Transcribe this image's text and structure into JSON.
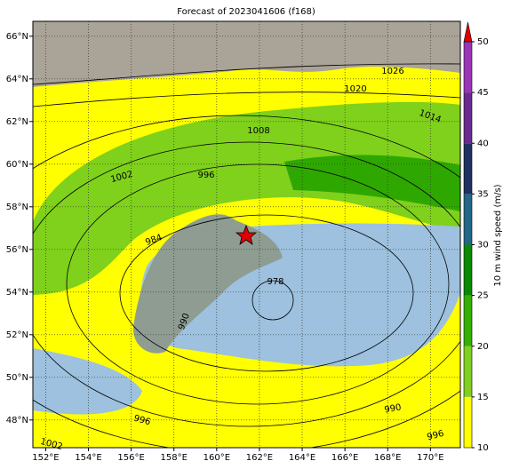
{
  "title": "Forecast of 2023041606 (f168)",
  "map": {
    "xlim": [
      151.4,
      171.4
    ],
    "ylim": [
      46.7,
      66.7
    ],
    "xticks": [
      {
        "value": 152,
        "label": "152°E"
      },
      {
        "value": 154,
        "label": "154°E"
      },
      {
        "value": 156,
        "label": "156°E"
      },
      {
        "value": 158,
        "label": "158°E"
      },
      {
        "value": 160,
        "label": "160°E"
      },
      {
        "value": 162,
        "label": "162°E"
      },
      {
        "value": 164,
        "label": "164°E"
      },
      {
        "value": 166,
        "label": "166°E"
      },
      {
        "value": 168,
        "label": "168°E"
      },
      {
        "value": 170,
        "label": "170°E"
      }
    ],
    "yticks": [
      {
        "value": 48,
        "label": "48°N"
      },
      {
        "value": 50,
        "label": "50°N"
      },
      {
        "value": 52,
        "label": "52°N"
      },
      {
        "value": 54,
        "label": "54°N"
      },
      {
        "value": 56,
        "label": "56°N"
      },
      {
        "value": 58,
        "label": "58°N"
      },
      {
        "value": 60,
        "label": "60°N"
      },
      {
        "value": 62,
        "label": "62°N"
      },
      {
        "value": 64,
        "label": "64°N"
      },
      {
        "value": 66,
        "label": "66°N"
      }
    ],
    "grid": true,
    "isobar_labels": [
      1026,
      1020,
      1014,
      1008,
      1002,
      996,
      984,
      978,
      990,
      996,
      990,
      996,
      1002
    ]
  },
  "colorbar": {
    "label": "10 m wind speed (m/s)",
    "ticks": [
      10,
      15,
      20,
      25,
      30,
      35,
      40,
      45,
      50
    ],
    "colors": [
      "#ffff00",
      "#80d020",
      "#34b000",
      "#0a8a00",
      "#226688",
      "#203060",
      "#6a2a90",
      "#9a34b8"
    ],
    "extend_color": "#e00000"
  }
}
